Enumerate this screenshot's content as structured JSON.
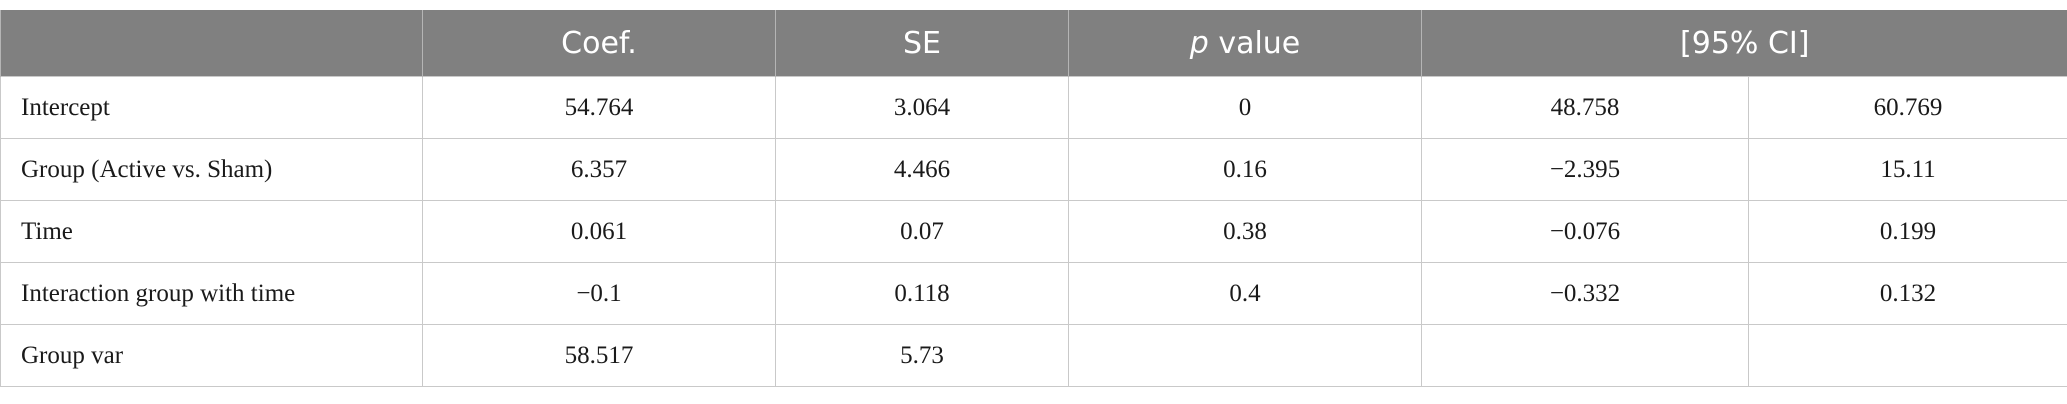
{
  "table": {
    "header": {
      "coef": "Coef.",
      "se": "SE",
      "p": {
        "symbol": "p",
        "text": "value"
      },
      "ci": "[95% CI]"
    },
    "rows": [
      [
        "Intercept",
        "54.764",
        "3.064",
        "0",
        "48.758",
        "60.769"
      ],
      [
        "Group (Active vs. Sham)",
        "6.357",
        "4.466",
        "0.16",
        "−2.395",
        "15.11"
      ],
      [
        "Time",
        "0.061",
        "0.07",
        "0.38",
        "−0.076",
        "0.199"
      ],
      [
        "Interaction group with time",
        "−0.1",
        "0.118",
        "0.4",
        "−0.332",
        "0.132"
      ],
      [
        "Group var",
        "58.517",
        "5.73"
      ]
    ]
  }
}
